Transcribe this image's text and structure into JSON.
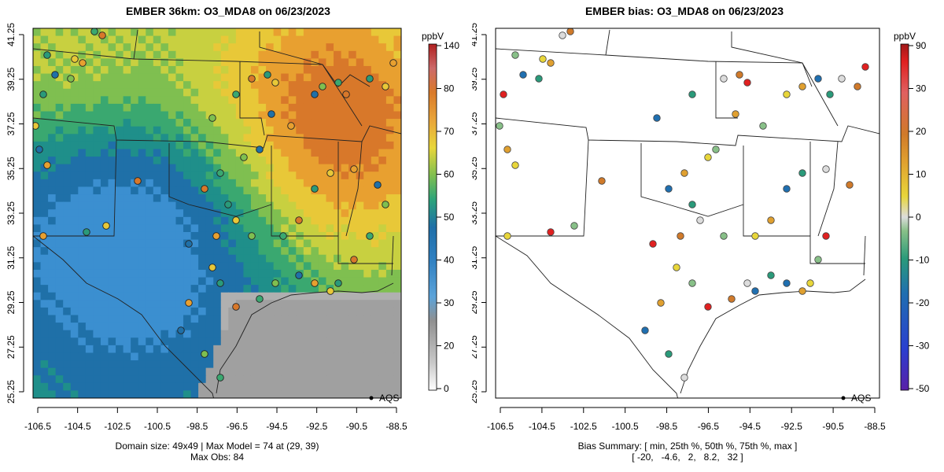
{
  "left_map": {
    "title": "EMBER 36km: O3_MDA8 on 06/23/2023",
    "x_ticks": [
      "-106.5",
      "-104.5",
      "-102.5",
      "-100.5",
      "-98.5",
      "-96.5",
      "-94.5",
      "-92.5",
      "-90.5",
      "-88.5"
    ],
    "y_ticks": [
      "41.25",
      "39.25",
      "37.25",
      "35.25",
      "33.25",
      "31.25",
      "29.25",
      "27.25",
      "25.25"
    ],
    "legend_marker_label": "AQS",
    "colorbar_unit": "ppbV",
    "colorbar_ticks": [
      "140",
      "80",
      "70",
      "60",
      "50",
      "40",
      "30",
      "20",
      "0"
    ],
    "caption_line1": "Domain size: 49x49 | Max Model = 74 at (29, 39)",
    "caption_line2": "Max Obs: 84"
  },
  "right_map": {
    "title": "EMBER bias: O3_MDA8 on 06/23/2023",
    "x_ticks": [
      "-106.5",
      "-104.5",
      "-102.5",
      "-100.5",
      "-98.5",
      "-96.5",
      "-94.5",
      "-92.5",
      "-90.5",
      "-88.5"
    ],
    "y_ticks": [
      "41.25",
      "39.25",
      "37.25",
      "35.25",
      "33.25",
      "31.25",
      "29.25",
      "27.25",
      "25.25"
    ],
    "legend_marker_label": "AQS",
    "colorbar_unit": "ppbV",
    "colorbar_ticks": [
      "90",
      "30",
      "20",
      "10",
      "0",
      "-10",
      "-20",
      "-30",
      "-50"
    ],
    "caption_line1": "Bias Summary: [ min, 25th %, 50th %, 75th %, max ]",
    "caption_line2": "[ -20,   -4.6,   2,   8.2,   32 ]"
  },
  "colors": {
    "ocean_gray": "#a9a9a9",
    "water_blue": "#5ba3d9"
  }
}
